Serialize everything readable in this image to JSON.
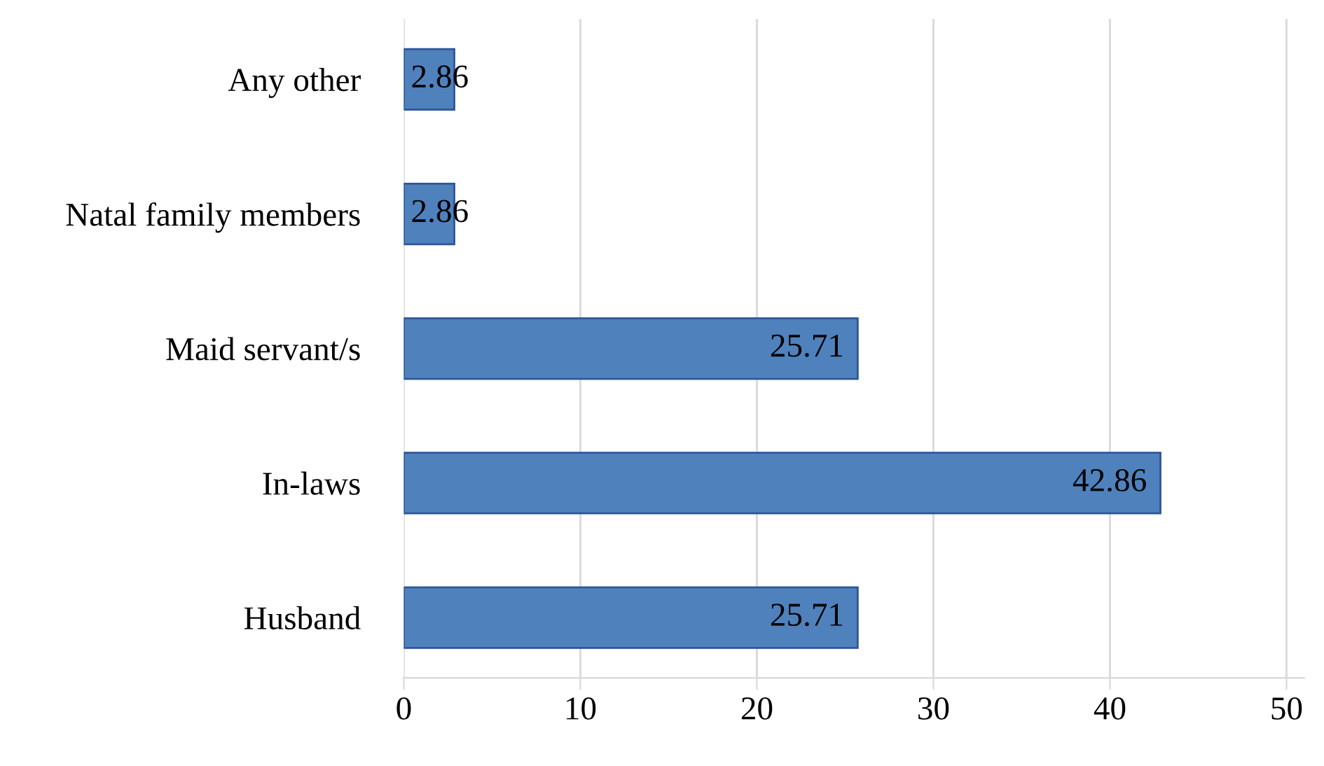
{
  "chart_data": {
    "type": "bar",
    "orientation": "horizontal",
    "categories": [
      "Any other",
      "Natal family members",
      "Maid servant/s",
      "In-laws",
      "Husband"
    ],
    "values": [
      2.86,
      2.86,
      25.71,
      42.86,
      25.71
    ],
    "color": "#4f81bd",
    "xlim": [
      0,
      51
    ],
    "xticks": [
      0,
      10,
      20,
      30,
      40,
      50
    ],
    "grid": "x",
    "data_labels": true
  }
}
